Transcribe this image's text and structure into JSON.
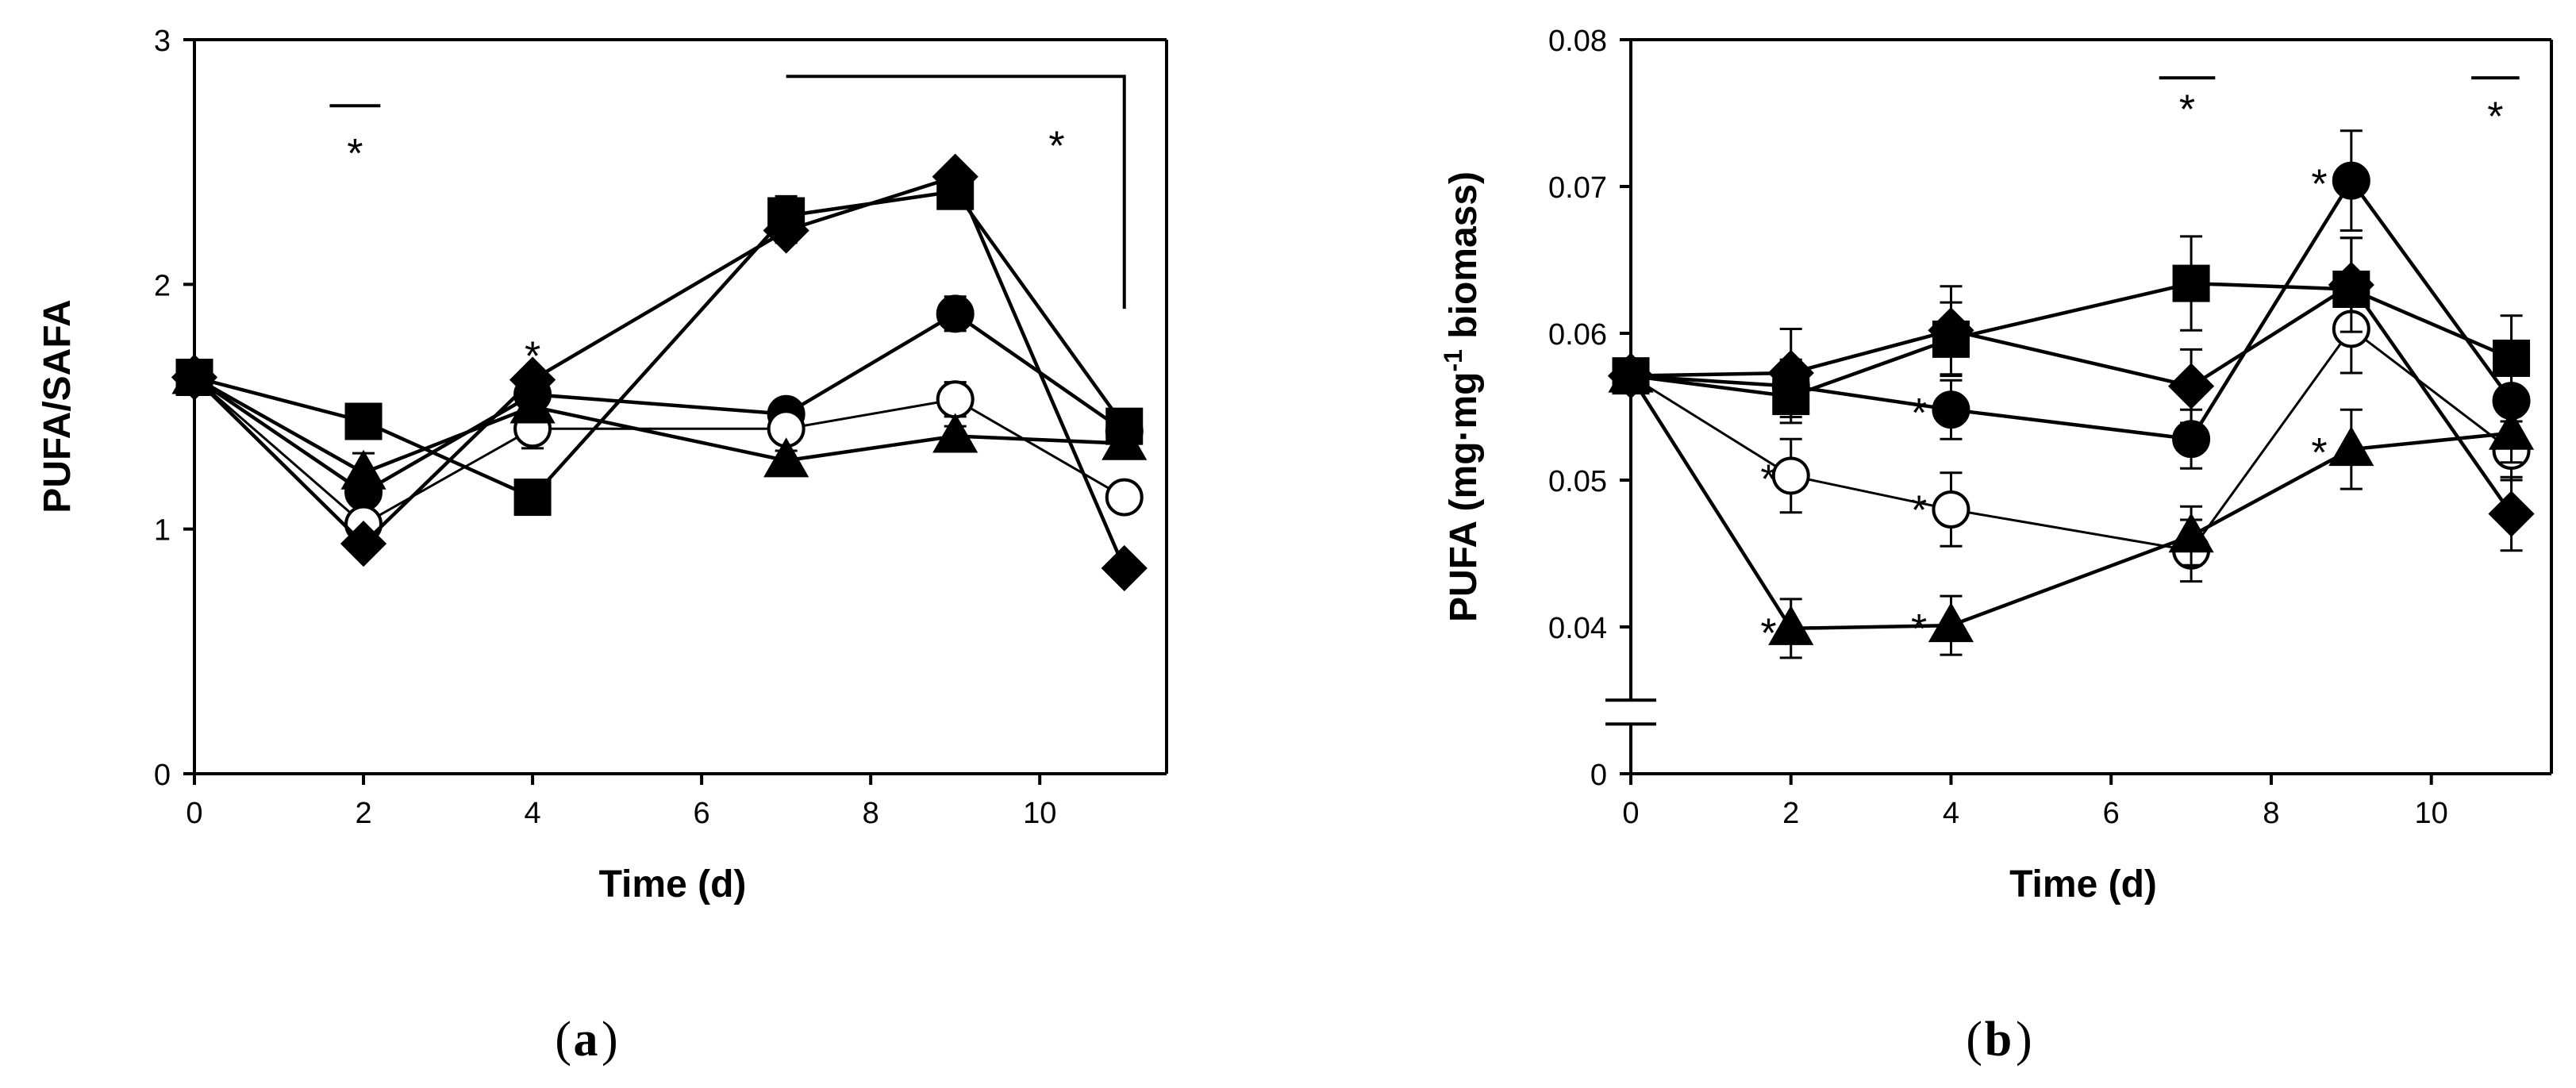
{
  "chart_data": [
    {
      "panel": "a",
      "type": "line",
      "ylabel": "PUFA/SAFA",
      "xlabel": "Time (d)",
      "xlim": [
        0,
        11.5
      ],
      "ylim": [
        0,
        3
      ],
      "xticks": [
        0,
        2,
        4,
        6,
        8,
        10
      ],
      "yticks": [
        0,
        1,
        2,
        3
      ],
      "x": [
        0,
        2,
        4,
        7,
        9,
        11
      ],
      "series": [
        {
          "name": "square",
          "marker": "square",
          "fill": "#000",
          "values": [
            1.62,
            1.44,
            1.13,
            2.28,
            2.38,
            1.42
          ],
          "err": [
            0.02,
            0.03,
            0.03,
            0.08,
            0.07,
            0.04
          ]
        },
        {
          "name": "circle-filled",
          "marker": "circle",
          "fill": "#000",
          "values": [
            1.62,
            1.15,
            1.55,
            1.47,
            1.88,
            1.4
          ],
          "err": [
            0.02,
            0.05,
            0.05,
            0.05,
            0.07,
            0.04
          ]
        },
        {
          "name": "circle-open",
          "marker": "circle",
          "fill": "#fff",
          "values": [
            1.62,
            1.02,
            1.41,
            1.41,
            1.53,
            1.13
          ],
          "err": [
            0.02,
            0.04,
            0.08,
            0.05,
            0.07,
            0.04
          ]
        },
        {
          "name": "triangle",
          "marker": "triangle",
          "fill": "#000",
          "values": [
            1.62,
            1.23,
            1.5,
            1.28,
            1.38,
            1.35
          ],
          "err": [
            0.02,
            0.08,
            0.05,
            0.04,
            0.04,
            0.04
          ]
        },
        {
          "name": "diamond",
          "marker": "diamond",
          "fill": "#000",
          "values": [
            1.62,
            0.94,
            1.61,
            2.22,
            2.44,
            0.84
          ],
          "err": [
            0.02,
            0.03,
            0.04,
            0.05,
            0.04,
            0.03
          ]
        }
      ],
      "significance": [
        {
          "label": "*",
          "bar": [
            1.6,
            2.2
          ],
          "bar_y": 2.73,
          "star_x": 1.9,
          "star_y": 2.55
        },
        {
          "label": "*",
          "star_x": 4.0,
          "star_y": 1.72
        },
        {
          "label": "*",
          "bracket": [
            7.0,
            11.0
          ],
          "bar_y": 2.85,
          "bracket_end_y": 1.9,
          "star_x": 10.2,
          "star_y": 2.58
        }
      ]
    },
    {
      "panel": "b",
      "type": "line",
      "ylabel": "PUFA (mg·mg⁻¹ biomass)",
      "ylabel_main": "PUFA (mg·mg",
      "ylabel_sup": "-1",
      "ylabel_tail": " biomass)",
      "xlabel": "Time (d)",
      "xlim": [
        0,
        11.5
      ],
      "ylim": [
        0.03,
        0.08
      ],
      "axis_break": true,
      "xticks": [
        0,
        2,
        4,
        6,
        8,
        10
      ],
      "yticks": [
        0.04,
        0.05,
        0.06,
        0.07,
        0.08
      ],
      "ytick_zero_label": "0",
      "x": [
        0,
        2,
        4,
        7,
        9,
        11
      ],
      "series": [
        {
          "name": "square",
          "marker": "square",
          "fill": "#000",
          "values": [
            0.0571,
            0.0557,
            0.0596,
            0.0634,
            0.063,
            0.0583
          ],
          "err": [
            0.0004,
            0.0018,
            0.0025,
            0.0032,
            0.0035,
            0.0029
          ]
        },
        {
          "name": "circle-filled",
          "marker": "circle",
          "fill": "#000",
          "values": [
            0.0571,
            0.0564,
            0.0548,
            0.0528,
            0.0704,
            0.0554
          ],
          "err": [
            0.0004,
            0.0018,
            0.002,
            0.002,
            0.0034,
            0.0022
          ]
        },
        {
          "name": "circle-open",
          "marker": "circle",
          "fill": "#fff",
          "values": [
            0.0571,
            0.0503,
            0.048,
            0.0452,
            0.0603,
            0.052
          ],
          "err": [
            0.0004,
            0.0025,
            0.0025,
            0.0021,
            0.003,
            0.002
          ]
        },
        {
          "name": "triangle",
          "marker": "triangle",
          "fill": "#000",
          "values": [
            0.0571,
            0.0399,
            0.0401,
            0.0462,
            0.0521,
            0.0532
          ],
          "err": [
            0.0004,
            0.002,
            0.002,
            0.002,
            0.0027,
            0.002
          ]
        },
        {
          "name": "diamond",
          "marker": "diamond",
          "fill": "#000",
          "values": [
            0.0571,
            0.0573,
            0.0602,
            0.0564,
            0.0633,
            0.0477
          ],
          "err": [
            0.0004,
            0.003,
            0.003,
            0.0025,
            0.0032,
            0.0025
          ]
        }
      ],
      "significance": [
        {
          "label": "*",
          "star_x": 1.72,
          "star_y": 0.0503
        },
        {
          "label": "*",
          "star_x": 1.72,
          "star_y": 0.0398
        },
        {
          "label": "*",
          "star_x": 3.6,
          "star_y": 0.0548
        },
        {
          "label": "*",
          "star_x": 3.6,
          "star_y": 0.0482
        },
        {
          "label": "*",
          "star_x": 3.6,
          "star_y": 0.0401
        },
        {
          "label": "*",
          "bar": [
            6.6,
            7.3
          ],
          "bar_y": 0.0774,
          "star_x": 6.95,
          "star_y": 0.0755
        },
        {
          "label": "*",
          "star_x": 8.6,
          "star_y": 0.0704
        },
        {
          "label": "*",
          "star_x": 8.6,
          "star_y": 0.0521
        },
        {
          "label": "*",
          "bar": [
            10.5,
            11.1
          ],
          "bar_y": 0.0774,
          "star_x": 10.8,
          "star_y": 0.075
        }
      ]
    }
  ],
  "captions": {
    "a": "a",
    "b": "b"
  }
}
